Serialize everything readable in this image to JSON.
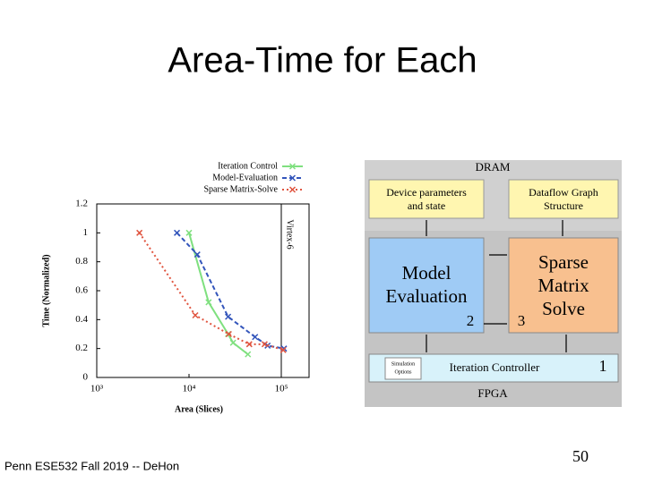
{
  "title": "Area-Time for Each",
  "footer": "Penn ESE532 Fall 2019 -- DeHon",
  "page_number": "50",
  "chart_data": {
    "type": "line",
    "x_label": "Area (Slices)",
    "y_label": "Time (Normalized)",
    "xscale": "log",
    "xlim": [
      1000,
      200000
    ],
    "xticks": [
      {
        "value": 1000,
        "label": "10³"
      },
      {
        "value": 10000,
        "label": "10⁴"
      },
      {
        "value": 100000,
        "label": "10⁵"
      }
    ],
    "ylim": [
      0,
      1.2
    ],
    "yticks": [
      0,
      0.2,
      0.4,
      0.6,
      0.8,
      1,
      1.2
    ],
    "annotation": {
      "text": "Virtex-6",
      "x": 100000
    },
    "series": [
      {
        "name": "Iteration Control",
        "color": "#7fe07f",
        "dash": "none",
        "x": [
          10000,
          16300,
          26500,
          30000,
          43500
        ],
        "values": [
          1.0,
          0.52,
          0.3,
          0.24,
          0.16
        ]
      },
      {
        "name": "Model-Evaluation",
        "color": "#3355bb",
        "dash": "5 3",
        "x": [
          7400,
          12300,
          26500,
          52000,
          71000,
          107000
        ],
        "values": [
          1.0,
          0.85,
          0.42,
          0.28,
          0.22,
          0.2
        ]
      },
      {
        "name": "Sparse Matrix-Solve",
        "color": "#e05540",
        "dash": "2 3",
        "x": [
          2900,
          11700,
          27000,
          45000,
          66000,
          105000
        ],
        "values": [
          1.0,
          0.43,
          0.3,
          0.23,
          0.23,
          0.19
        ]
      }
    ]
  },
  "diagram": {
    "dram": "DRAM",
    "device_params": [
      "Device parameters",
      "and state"
    ],
    "dataflow_graph": [
      "Dataflow Graph",
      "Structure"
    ],
    "model_eval": [
      "Model",
      "Evaluation"
    ],
    "sparse_solve": [
      "Sparse",
      "Matrix",
      "Solve"
    ],
    "label_2": "2",
    "label_3": "3",
    "sim_options": [
      "Simulation",
      "Options"
    ],
    "iteration_controller": "Iteration Controller",
    "label_1": "1",
    "fpga": "FPGA"
  }
}
